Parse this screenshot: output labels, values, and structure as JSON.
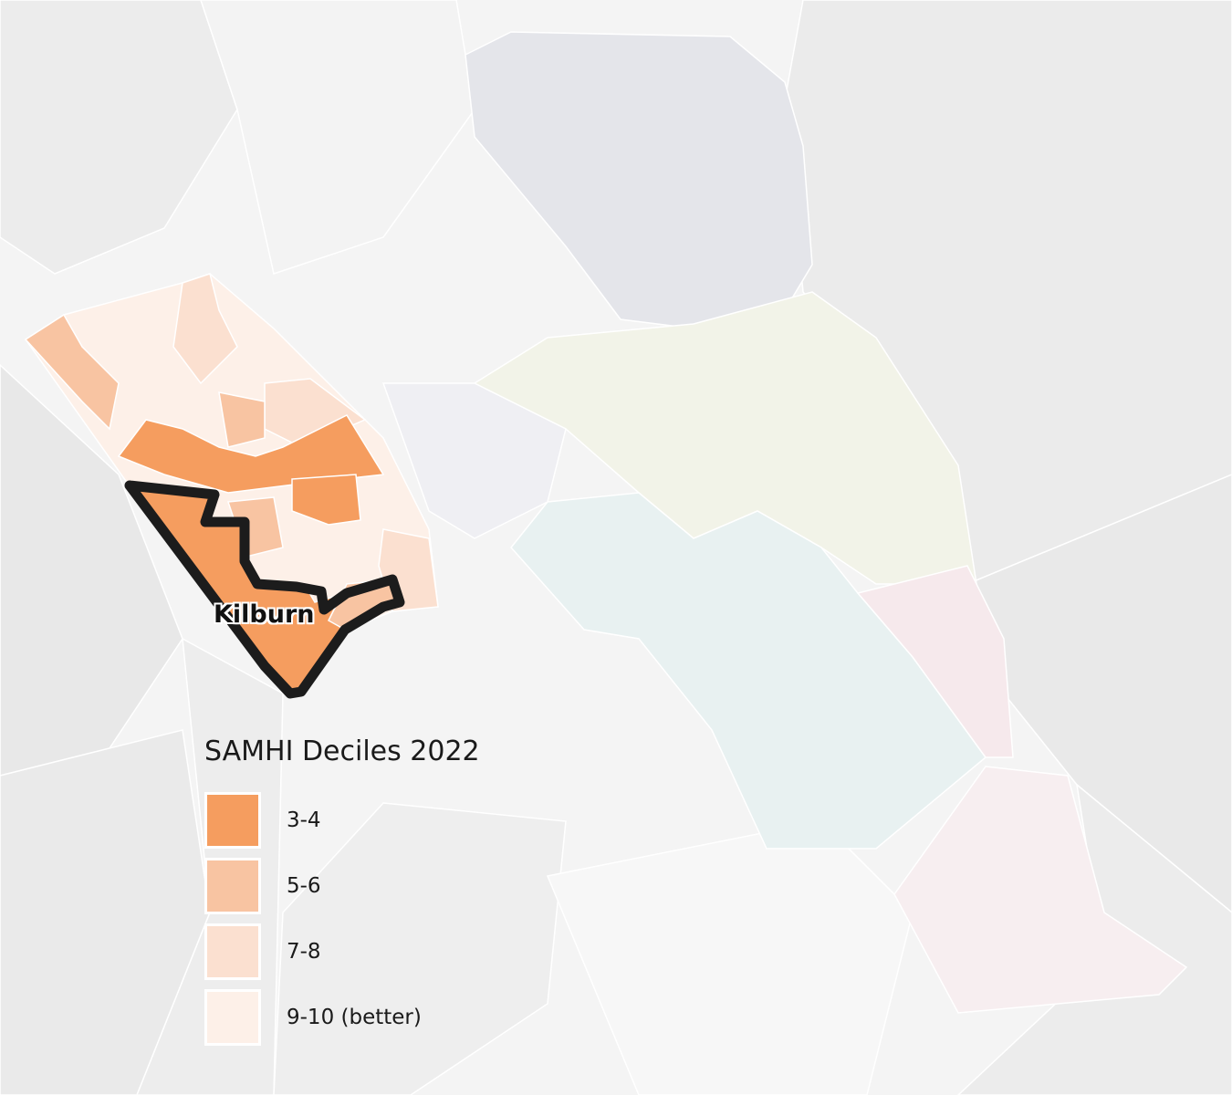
{
  "map": {
    "place_label": "Kilburn",
    "colors": {
      "background": "#f4f4f4",
      "context_area": "#e9e9e9",
      "highlight_outline": "#1c1c1c"
    }
  },
  "legend": {
    "title": "SAMHI Deciles 2022",
    "items": [
      {
        "label": "3-4",
        "color": "#f59d5f"
      },
      {
        "label": "5-6",
        "color": "#f8c4a2"
      },
      {
        "label": "7-8",
        "color": "#fbe0d0"
      },
      {
        "label": "9-10 (better)",
        "color": "#fdf0e8"
      }
    ]
  }
}
